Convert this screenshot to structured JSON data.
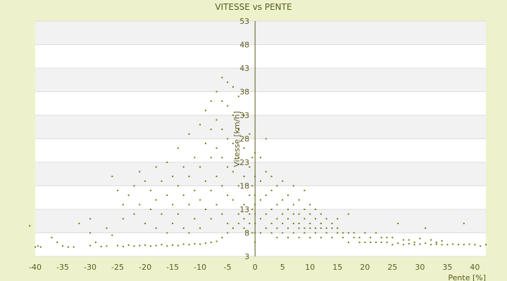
{
  "chart_data": {
    "type": "scatter",
    "title": "VITESSE vs PENTE",
    "xlabel": "Pente [%]",
    "ylabel": "Vitesse [km/h]",
    "xlim": [
      -40,
      42
    ],
    "ylim": [
      3,
      53
    ],
    "xticks": [
      -40,
      -35,
      -30,
      -25,
      -20,
      -15,
      -10,
      -5,
      0,
      5,
      10,
      15,
      20,
      25,
      30,
      35,
      40
    ],
    "yticks": [
      3,
      8,
      13,
      18,
      23,
      28,
      33,
      38,
      43,
      48,
      53
    ],
    "grid": "horizontal bands",
    "point_color": "#6b7a10",
    "band_color": "#f2f2f2",
    "series": [
      {
        "points": [
          [
            -40,
            5
          ],
          [
            -39,
            5
          ],
          [
            -39.5,
            5.2
          ],
          [
            -41,
            9.5
          ],
          [
            -37,
            7
          ],
          [
            -36,
            6
          ],
          [
            -35,
            5.2
          ],
          [
            -34,
            5
          ],
          [
            -33,
            5
          ],
          [
            -32,
            10
          ],
          [
            -30,
            5.3
          ],
          [
            -29,
            6
          ],
          [
            -28,
            5.1
          ],
          [
            -27,
            5.2
          ],
          [
            -26,
            7.5
          ],
          [
            -25,
            5.3
          ],
          [
            -24,
            5.1
          ],
          [
            -23,
            5.4
          ],
          [
            -22,
            5.2
          ],
          [
            -21,
            5.3
          ],
          [
            -20,
            5.4
          ],
          [
            -19,
            5.2
          ],
          [
            -18,
            5.3
          ],
          [
            -17,
            5.5
          ],
          [
            -16,
            5.2
          ],
          [
            -15,
            5.4
          ],
          [
            -14,
            5.3
          ],
          [
            -13,
            5.6
          ],
          [
            -12,
            5.5
          ],
          [
            -11,
            5.7
          ],
          [
            -10,
            5.6
          ],
          [
            -9,
            5.8
          ],
          [
            -8,
            6
          ],
          [
            -7,
            6.2
          ],
          [
            -6,
            7
          ],
          [
            -5,
            8
          ],
          [
            -4,
            9
          ],
          [
            -3,
            10
          ],
          [
            -2,
            11
          ],
          [
            -1,
            12
          ],
          [
            -30,
            11
          ],
          [
            -30,
            8
          ],
          [
            -27,
            9
          ],
          [
            -26,
            20
          ],
          [
            -25,
            17
          ],
          [
            -24,
            14
          ],
          [
            -24,
            11
          ],
          [
            -23,
            16
          ],
          [
            -22,
            18
          ],
          [
            -22,
            12
          ],
          [
            -21,
            21
          ],
          [
            -21,
            14
          ],
          [
            -20,
            19
          ],
          [
            -20,
            10
          ],
          [
            -19,
            17
          ],
          [
            -19,
            13
          ],
          [
            -18,
            22
          ],
          [
            -18,
            15
          ],
          [
            -18,
            9
          ],
          [
            -17,
            19
          ],
          [
            -17,
            12
          ],
          [
            -16,
            23
          ],
          [
            -16,
            16
          ],
          [
            -16,
            8
          ],
          [
            -15,
            20
          ],
          [
            -15,
            14
          ],
          [
            -15,
            10
          ],
          [
            -14,
            26
          ],
          [
            -14,
            18
          ],
          [
            -14,
            12
          ],
          [
            -13,
            22
          ],
          [
            -13,
            16
          ],
          [
            -13,
            9
          ],
          [
            -12,
            29
          ],
          [
            -12,
            20
          ],
          [
            -12,
            14
          ],
          [
            -12,
            8
          ],
          [
            -11,
            24
          ],
          [
            -11,
            17
          ],
          [
            -11,
            11
          ],
          [
            -10,
            31
          ],
          [
            -10,
            22
          ],
          [
            -10,
            15
          ],
          [
            -10,
            9
          ],
          [
            -9,
            34
          ],
          [
            -9,
            27
          ],
          [
            -9,
            19
          ],
          [
            -9,
            13
          ],
          [
            -8,
            36
          ],
          [
            -8,
            30
          ],
          [
            -8,
            24
          ],
          [
            -8,
            17
          ],
          [
            -8,
            11
          ],
          [
            -7,
            38
          ],
          [
            -7,
            32
          ],
          [
            -7,
            26
          ],
          [
            -7,
            20
          ],
          [
            -7,
            14
          ],
          [
            -6,
            41
          ],
          [
            -6,
            36
          ],
          [
            -6,
            30
          ],
          [
            -6,
            24
          ],
          [
            -6,
            18
          ],
          [
            -6,
            12
          ],
          [
            -5,
            40
          ],
          [
            -5,
            35
          ],
          [
            -5,
            28
          ],
          [
            -5,
            22
          ],
          [
            -5,
            16
          ],
          [
            -5,
            10
          ],
          [
            -4,
            39
          ],
          [
            -4,
            33
          ],
          [
            -4,
            27
          ],
          [
            -4,
            21
          ],
          [
            -4,
            15
          ],
          [
            -3,
            37
          ],
          [
            -3,
            30
          ],
          [
            -3,
            24
          ],
          [
            -3,
            18
          ],
          [
            -3,
            12
          ],
          [
            -2,
            33
          ],
          [
            -2,
            26
          ],
          [
            -2,
            20
          ],
          [
            -2,
            14
          ],
          [
            -2,
            9
          ],
          [
            -1,
            29
          ],
          [
            -1,
            22
          ],
          [
            -1,
            16
          ],
          [
            -1,
            10
          ],
          [
            -0.5,
            24
          ],
          [
            -0.5,
            18
          ],
          [
            -0.5,
            13
          ],
          [
            -0.5,
            8
          ],
          [
            0,
            6
          ],
          [
            0,
            8
          ],
          [
            0,
            10
          ],
          [
            0,
            12
          ],
          [
            0,
            14
          ],
          [
            0,
            16
          ],
          [
            0,
            20
          ],
          [
            0,
            25
          ],
          [
            1,
            8
          ],
          [
            1,
            11
          ],
          [
            1,
            15
          ],
          [
            1,
            19
          ],
          [
            1,
            24
          ],
          [
            2,
            9
          ],
          [
            2,
            12
          ],
          [
            2,
            16
          ],
          [
            2,
            21
          ],
          [
            2,
            28
          ],
          [
            3,
            8
          ],
          [
            3,
            10
          ],
          [
            3,
            13
          ],
          [
            3,
            17
          ],
          [
            3,
            20
          ],
          [
            4,
            7
          ],
          [
            4,
            9
          ],
          [
            4,
            11
          ],
          [
            4,
            14
          ],
          [
            4,
            18
          ],
          [
            5,
            8
          ],
          [
            5,
            10
          ],
          [
            5,
            12
          ],
          [
            5,
            15
          ],
          [
            5,
            19
          ],
          [
            6,
            7
          ],
          [
            6,
            9
          ],
          [
            6,
            11
          ],
          [
            6,
            13
          ],
          [
            6,
            16
          ],
          [
            7,
            8
          ],
          [
            7,
            10
          ],
          [
            7,
            12
          ],
          [
            7,
            14
          ],
          [
            7,
            18
          ],
          [
            8,
            7
          ],
          [
            8,
            9
          ],
          [
            8,
            10
          ],
          [
            8,
            12
          ],
          [
            8,
            15
          ],
          [
            9,
            8
          ],
          [
            9,
            9
          ],
          [
            9,
            11
          ],
          [
            9,
            13
          ],
          [
            9,
            17
          ],
          [
            10,
            7
          ],
          [
            10,
            9
          ],
          [
            10,
            10
          ],
          [
            10,
            12
          ],
          [
            10,
            14
          ],
          [
            11,
            8
          ],
          [
            11,
            9
          ],
          [
            11,
            11
          ],
          [
            11,
            13
          ],
          [
            12,
            7
          ],
          [
            12,
            9
          ],
          [
            12,
            10
          ],
          [
            12,
            12
          ],
          [
            13,
            8
          ],
          [
            13,
            9
          ],
          [
            13,
            11
          ],
          [
            14,
            7
          ],
          [
            14,
            9
          ],
          [
            14,
            10
          ],
          [
            15,
            8
          ],
          [
            15,
            9
          ],
          [
            15,
            11
          ],
          [
            16,
            7
          ],
          [
            16,
            8
          ],
          [
            17,
            6
          ],
          [
            17,
            8
          ],
          [
            17,
            12
          ],
          [
            18,
            7
          ],
          [
            18,
            8
          ],
          [
            19,
            6
          ],
          [
            19,
            7
          ],
          [
            20,
            6
          ],
          [
            20,
            8
          ],
          [
            21,
            6
          ],
          [
            21,
            7
          ],
          [
            22,
            6
          ],
          [
            22,
            8
          ],
          [
            23,
            6
          ],
          [
            23,
            7
          ],
          [
            24,
            6
          ],
          [
            24,
            7
          ],
          [
            25,
            5.5
          ],
          [
            25,
            7
          ],
          [
            26,
            5.8
          ],
          [
            26,
            10
          ],
          [
            27,
            5.5
          ],
          [
            27,
            6.5
          ],
          [
            28,
            5.7
          ],
          [
            28,
            6.5
          ],
          [
            29,
            5.5
          ],
          [
            29,
            6
          ],
          [
            30,
            5.6
          ],
          [
            30,
            6.8
          ],
          [
            31,
            9
          ],
          [
            31,
            5.8
          ],
          [
            32,
            5.5
          ],
          [
            32,
            6.5
          ],
          [
            33,
            5.6
          ],
          [
            33,
            6
          ],
          [
            34,
            5.5
          ],
          [
            34,
            6.3
          ],
          [
            35,
            5.5
          ],
          [
            36,
            5.6
          ],
          [
            37,
            5.5
          ],
          [
            38,
            10
          ],
          [
            38,
            5.5
          ],
          [
            39,
            5.6
          ],
          [
            40,
            5.5
          ],
          [
            41,
            5.2
          ],
          [
            42,
            5.5
          ]
        ]
      }
    ]
  }
}
